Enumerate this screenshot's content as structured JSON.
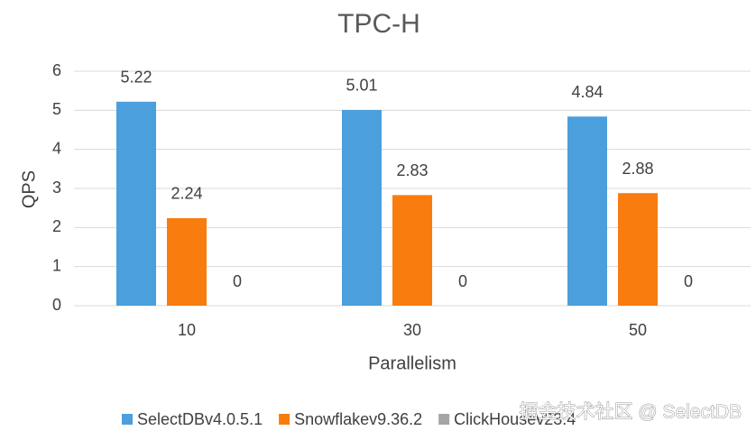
{
  "chart_data": {
    "type": "bar",
    "title": "TPC-H",
    "x_label": "Parallelism",
    "y_label": "QPS",
    "categories": [
      "10",
      "30",
      "50"
    ],
    "series": [
      {
        "name": "SelectDBv4.0.5.1",
        "color": "#4a9fdc",
        "values": [
          5.22,
          5.01,
          4.84
        ]
      },
      {
        "name": "Snowflakev9.36.2",
        "color": "#f97c0f",
        "values": [
          2.24,
          2.83,
          2.88
        ]
      },
      {
        "name": "ClickHousev23.4",
        "color": "#a5a5a5",
        "values": [
          0,
          0,
          0
        ]
      }
    ],
    "ylim": [
      0,
      6
    ],
    "yticks": [
      0,
      1,
      2,
      3,
      4,
      5,
      6
    ],
    "grid": true,
    "legend": "bottom",
    "watermark": "掘金技术社区 @ SelectDB"
  }
}
